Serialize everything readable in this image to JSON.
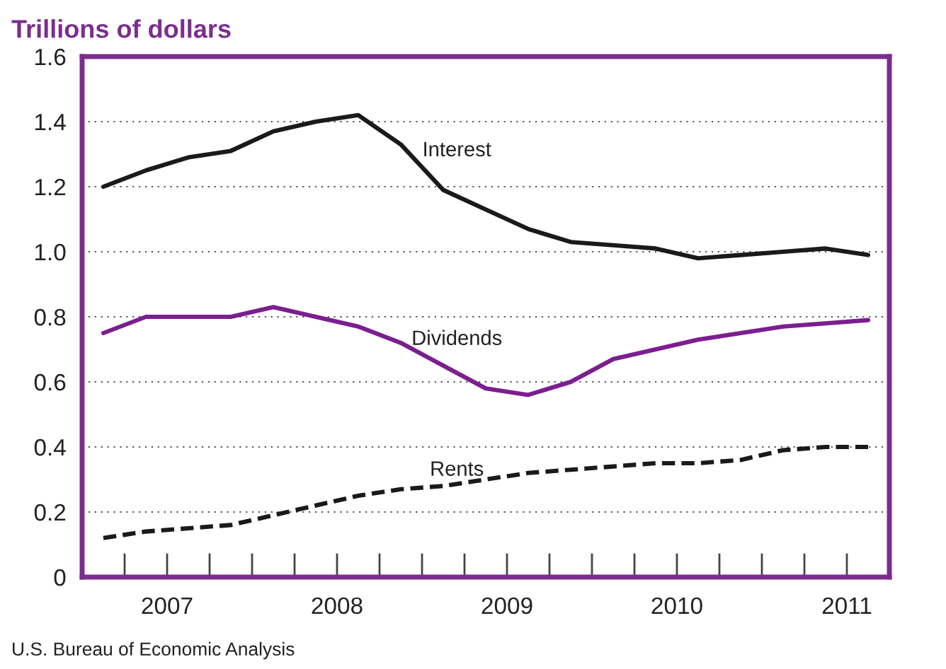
{
  "chart_data": {
    "type": "line",
    "title": "Trillions of dollars",
    "x": [
      2007.125,
      2007.375,
      2007.625,
      2007.875,
      2008.125,
      2008.375,
      2008.625,
      2008.875,
      2009.125,
      2009.375,
      2009.625,
      2009.875,
      2010.125,
      2010.375,
      2010.625,
      2010.875,
      2011.125,
      2011.375,
      2011.625
    ],
    "series": [
      {
        "name": "Interest",
        "color": "#1a1a1a",
        "line_style": "solid",
        "values": [
          1.2,
          1.25,
          1.29,
          1.31,
          1.37,
          1.4,
          1.42,
          1.33,
          1.19,
          1.13,
          1.07,
          1.03,
          1.02,
          1.01,
          0.98,
          0.99,
          1.0,
          1.01,
          0.99
        ]
      },
      {
        "name": "Dividends",
        "color": "#7b1f8f",
        "line_style": "solid",
        "values": [
          0.75,
          0.8,
          0.8,
          0.8,
          0.83,
          0.8,
          0.77,
          0.72,
          0.65,
          0.58,
          0.56,
          0.6,
          0.67,
          0.7,
          0.73,
          0.75,
          0.77,
          0.78,
          0.79
        ]
      },
      {
        "name": "Rents",
        "color": "#1a1a1a",
        "line_style": "dashed",
        "values": [
          0.12,
          0.14,
          0.15,
          0.16,
          0.19,
          0.22,
          0.25,
          0.27,
          0.28,
          0.3,
          0.32,
          0.33,
          0.34,
          0.35,
          0.35,
          0.36,
          0.39,
          0.4,
          0.4
        ]
      }
    ],
    "xlim": [
      2007,
      2011.75
    ],
    "xticks": [
      {
        "value": 2007.5,
        "label": "2007"
      },
      {
        "value": 2008.5,
        "label": "2008"
      },
      {
        "value": 2009.5,
        "label": "2009"
      },
      {
        "value": 2010.5,
        "label": "2010"
      },
      {
        "value": 2011.5,
        "label": "2011"
      }
    ],
    "ylim": [
      0,
      1.6
    ],
    "yticks": [
      {
        "value": 0,
        "label": "0"
      },
      {
        "value": 0.2,
        "label": "0.2"
      },
      {
        "value": 0.4,
        "label": "0.4"
      },
      {
        "value": 0.6,
        "label": "0.6"
      },
      {
        "value": 0.8,
        "label": "0.8"
      },
      {
        "value": 1.0,
        "label": "1.0"
      },
      {
        "value": 1.2,
        "label": "1.2"
      },
      {
        "value": 1.4,
        "label": "1.4"
      },
      {
        "value": 1.6,
        "label": "1.6"
      }
    ],
    "grid": "y",
    "legend": false,
    "marker": "none",
    "annotations": [
      "U.S. Bureau of Economic Analysis"
    ]
  }
}
